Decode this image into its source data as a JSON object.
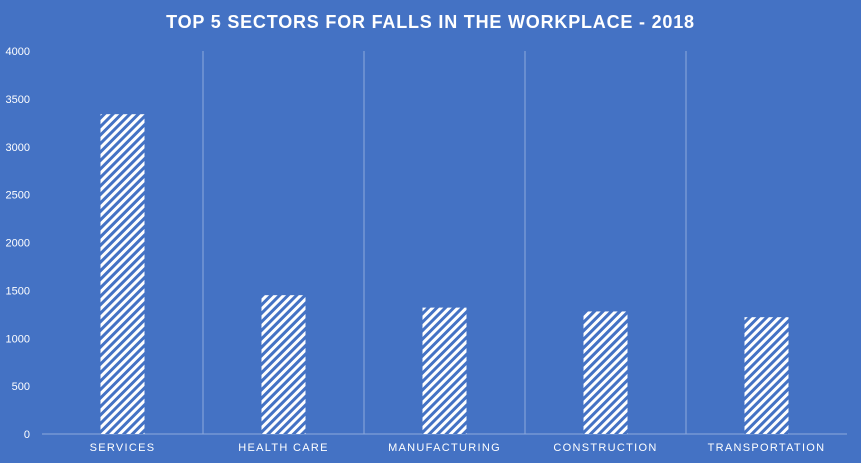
{
  "chart_data": {
    "type": "bar",
    "title": "TOP 5 SECTORS FOR FALLS IN THE WORKPLACE - 2018",
    "categories": [
      "SERVICES",
      "HEALTH CARE",
      "MANUFACTURING",
      "CONSTRUCTION",
      "TRANSPORTATION"
    ],
    "values": [
      3340,
      1450,
      1320,
      1280,
      1220
    ],
    "xlabel": "",
    "ylabel": "",
    "ylim": [
      0,
      4000
    ],
    "yticks": [
      0,
      500,
      1000,
      1500,
      2000,
      2500,
      3000,
      3500,
      4000
    ],
    "grid": "vertical separators between categories",
    "legend": "none",
    "bar_fill": "white diagonal hatch",
    "colors": {
      "background": "#4472c4",
      "text": "#ffffff",
      "bar": "#ffffff",
      "grid": "#8ea9db"
    }
  }
}
